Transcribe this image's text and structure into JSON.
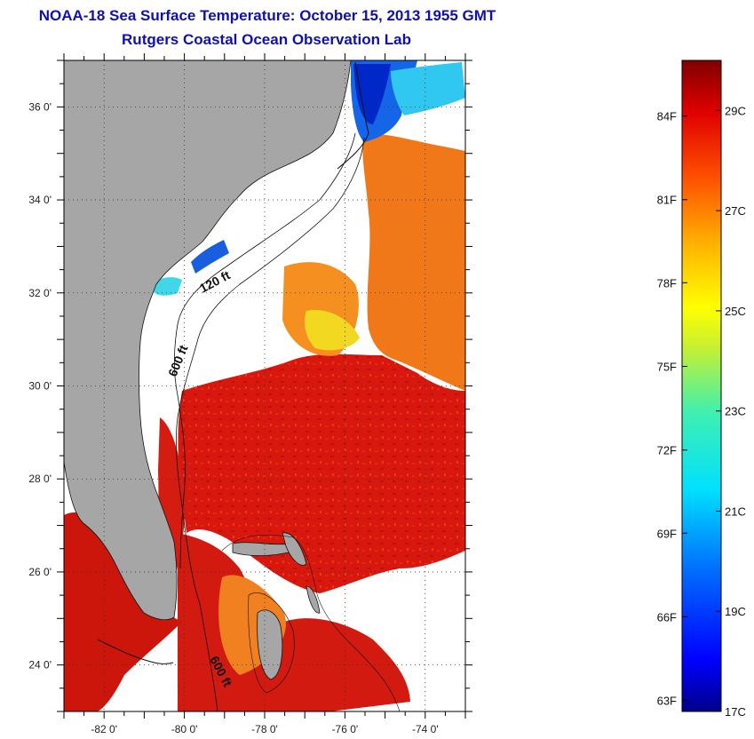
{
  "header": {
    "title": "NOAA-18 Sea Surface Temperature:  October 15, 2013 1955 GMT",
    "subtitle": "Rutgers Coastal Ocean Observation Lab"
  },
  "map": {
    "lon_range": [
      -83,
      -73
    ],
    "lat_range": [
      23,
      37
    ],
    "lon_ticks": [
      {
        "value": -82,
        "label": "-82 0'"
      },
      {
        "value": -80,
        "label": "-80 0'"
      },
      {
        "value": -78,
        "label": "-78 0'"
      },
      {
        "value": -76,
        "label": "-76 0'"
      },
      {
        "value": -74,
        "label": "-74 0'"
      }
    ],
    "lat_ticks": [
      {
        "value": 24,
        "label": "24 0'"
      },
      {
        "value": 26,
        "label": "26 0'"
      },
      {
        "value": 28,
        "label": "28 0'"
      },
      {
        "value": 30,
        "label": "30 0'"
      },
      {
        "value": 32,
        "label": "32 0'"
      },
      {
        "value": 34,
        "label": "34 0'"
      },
      {
        "value": 36,
        "label": "36 0'"
      }
    ],
    "depth_labels": [
      "120 ft",
      "600 ft",
      "600 ft"
    ],
    "colors": {
      "land": "#a6a6a6",
      "warm": "#d8180e",
      "warm_dark": "#b90e0a",
      "orange": "#f07818",
      "yellow": "#f2e21a",
      "cool": "#1060e8",
      "cold": "#0020c0",
      "cyan": "#30d0f0"
    }
  },
  "colorbar": {
    "min_c": 17,
    "max_c": 30,
    "fahrenheit_ticks": [
      {
        "value_c": 28.89,
        "label": "84F"
      },
      {
        "value_c": 27.22,
        "label": "81F"
      },
      {
        "value_c": 25.56,
        "label": "78F"
      },
      {
        "value_c": 23.89,
        "label": "75F"
      },
      {
        "value_c": 22.22,
        "label": "72F"
      },
      {
        "value_c": 20.56,
        "label": "69F"
      },
      {
        "value_c": 18.89,
        "label": "66F"
      },
      {
        "value_c": 17.22,
        "label": "63F"
      }
    ],
    "celsius_ticks": [
      {
        "value_c": 29,
        "label": "29C"
      },
      {
        "value_c": 27,
        "label": "27C"
      },
      {
        "value_c": 25,
        "label": "25C"
      },
      {
        "value_c": 23,
        "label": "23C"
      },
      {
        "value_c": 21,
        "label": "21C"
      },
      {
        "value_c": 19,
        "label": "19C"
      },
      {
        "value_c": 17,
        "label": "17C"
      }
    ]
  }
}
